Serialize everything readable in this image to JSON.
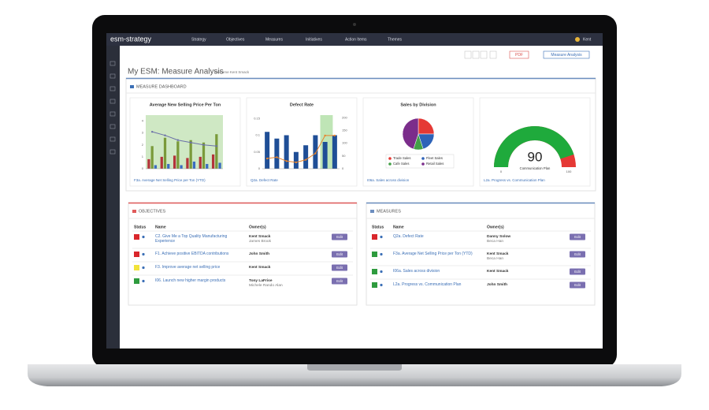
{
  "nav": {
    "logo": "esm-strategy",
    "menu": [
      "Strategy",
      "Objectives",
      "Measures",
      "Initiatives",
      "Action Items",
      "Themes"
    ],
    "user": "Kent"
  },
  "toolbar": {
    "buttons": [
      "PDF",
      "Measure Analysis"
    ]
  },
  "header": {
    "title": "My ESM: Measure Analysis",
    "subtitle": "Welcome Kent Smack"
  },
  "dashboard": {
    "title": "MEASURE DASHBOARD",
    "widgets": [
      {
        "title": "Average New Selling Price Per Ton",
        "link": "F3a. Average Net Selling Price per Ton (YTD)",
        "chart": {
          "type": "bar",
          "ylim": [
            0,
            4.5
          ],
          "yticks": [
            0,
            1,
            2,
            3,
            4
          ],
          "series": [
            {
              "type": "bar",
              "color": "#b3343a",
              "values": [
                0.8,
                1.0,
                1.1,
                0.9,
                1.0,
                1.2
              ]
            },
            {
              "type": "bar",
              "color": "#7a9a3a",
              "values": [
                1.9,
                2.6,
                2.3,
                2.4,
                2.2,
                2.9
              ]
            },
            {
              "type": "bar",
              "color": "#3a6cc0",
              "values": [
                0.3,
                0.4,
                0.3,
                0.6,
                0.4,
                0.5
              ]
            },
            {
              "type": "line",
              "color": "#6a6fa8",
              "values": [
                3.1,
                2.8,
                2.4,
                2.2,
                2.0,
                1.9
              ]
            }
          ]
        }
      },
      {
        "title": "Defect Rate",
        "link": "Q2a. Defect Rate",
        "chart": {
          "type": "bar",
          "ylim": [
            0,
            0.16
          ],
          "yticks": [
            0,
            0.05,
            0.1,
            0.15
          ],
          "y2lim": [
            0,
            210
          ],
          "y2ticks": [
            0,
            50,
            100,
            150,
            200
          ],
          "series": [
            {
              "type": "bar",
              "color": "#1f4e96",
              "values": [
                0.11,
                0.09,
                0.1,
                0.05,
                0.07,
                0.1,
                0.08,
                0.1
              ]
            },
            {
              "type": "line",
              "axis": "y2",
              "color": "#e8842c",
              "values": [
                40,
                45,
                30,
                25,
                35,
                60,
                130,
                130
              ]
            }
          ]
        }
      },
      {
        "title": "Sales by Division",
        "link": "I06a. Sales across division",
        "chart": {
          "type": "pie",
          "series": [
            {
              "name": "Trade Sales",
              "color": "#e53935",
              "value": 25
            },
            {
              "name": "Fleet Sales",
              "color": "#2e63b8",
              "value": 20
            },
            {
              "name": "Cafe Sales",
              "color": "#43a047",
              "value": 10
            },
            {
              "name": "Retail Sales",
              "color": "#7b2d8b",
              "value": 45
            }
          ]
        }
      },
      {
        "title": "",
        "link": "L2a. Progress vs. Communication Plan",
        "chart": {
          "type": "gauge",
          "value": 90,
          "label": "Communication Plan",
          "lim": [
            0,
            100
          ],
          "color": "#1faa3c",
          "rest_color": "#e53935"
        }
      }
    ]
  },
  "objectives": {
    "title": "OBJECTIVES",
    "columns": [
      "Status",
      "Name",
      "Owner(s)"
    ],
    "rows": [
      {
        "status": "#d9262b",
        "name": "C2. Give Me a Top Quality Manufacturing Experience",
        "owners": [
          "Kent Smack",
          "James Brook"
        ],
        "action": "Edit"
      },
      {
        "status": "#d9262b",
        "name": "F1. Achieve positive EBITDA contributions",
        "owners": [
          "John Smith"
        ],
        "action": "Edit"
      },
      {
        "status": "#f2e33a",
        "name": "F3. Improve average net selling price",
        "owners": [
          "Kent Smack"
        ],
        "action": "Edit"
      },
      {
        "status": "#2e9b3e",
        "name": "I06. Launch new higher margin products",
        "owners": [
          "Tony LaFrise",
          "Michele Rando Alan"
        ],
        "action": "Edit"
      }
    ]
  },
  "measures": {
    "title": "MEASURES",
    "columns": [
      "Status",
      "Name",
      "Owner(s)"
    ],
    "rows": [
      {
        "status": "#d9262b",
        "name": "Q2a. Defect Rate",
        "owners": [
          "Danny Solow",
          "Beca Han"
        ],
        "action": "Edit"
      },
      {
        "status": "#2e9b3e",
        "name": "F3a. Average Net Selling Price per Ton (YTD)",
        "owners": [
          "Kent Smack",
          "Beca Han"
        ],
        "action": "Edit"
      },
      {
        "status": "#2e9b3e",
        "name": "I06a. Sales across division",
        "owners": [
          "Kent Smack"
        ],
        "action": "Edit"
      },
      {
        "status": "#2e9b3e",
        "name": "L2a. Progress vs. Communication Plan",
        "owners": [
          "John Smith"
        ],
        "action": "Edit"
      }
    ]
  }
}
